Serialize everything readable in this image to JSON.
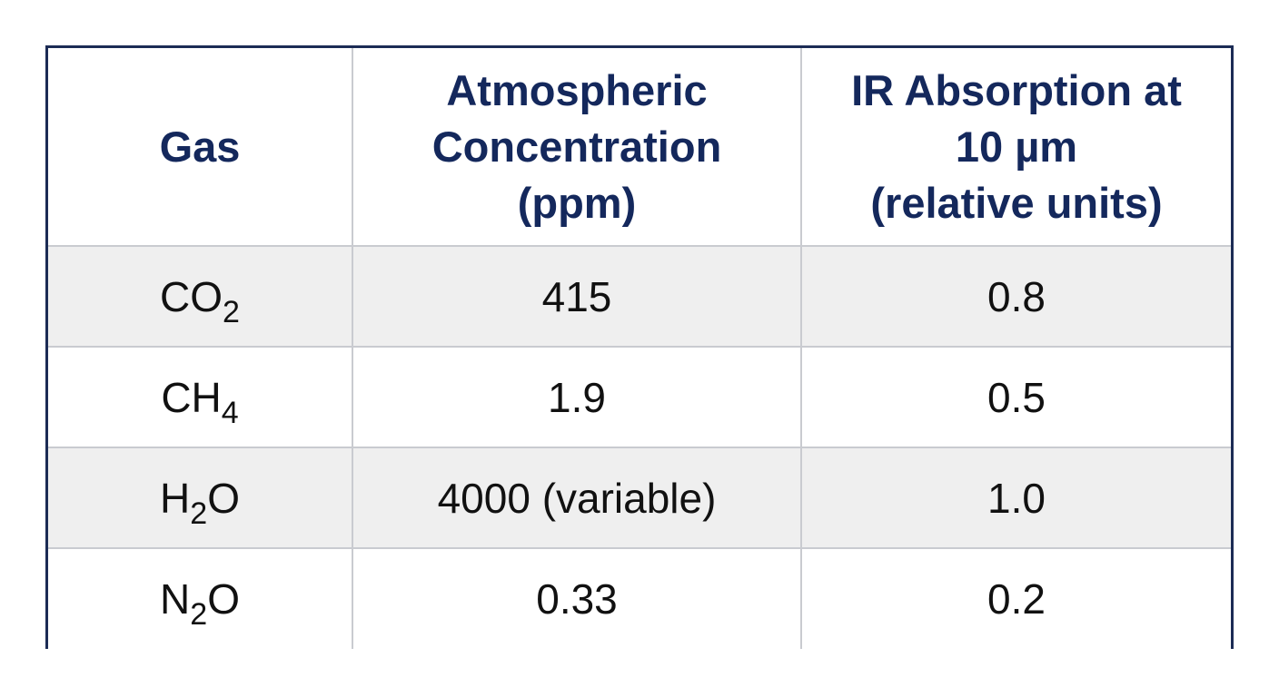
{
  "table": {
    "headers": [
      {
        "lines": [
          "Gas"
        ]
      },
      {
        "lines": [
          "Atmospheric",
          "Concentration",
          "(ppm)"
        ]
      },
      {
        "lines": [
          "IR Absorption at",
          "10 µm",
          "(relative units)"
        ]
      }
    ],
    "rows": [
      {
        "gas": {
          "main": "CO",
          "sub": "2",
          "tail": ""
        },
        "concentration": "415",
        "absorption": "0.8"
      },
      {
        "gas": {
          "main": "CH",
          "sub": "4",
          "tail": ""
        },
        "concentration": "1.9",
        "absorption": "0.5"
      },
      {
        "gas": {
          "main": "H",
          "sub": "2",
          "tail": "O"
        },
        "concentration": "4000 (variable)",
        "absorption": "1.0"
      },
      {
        "gas": {
          "main": "N",
          "sub": "2",
          "tail": "O"
        },
        "concentration": "0.33",
        "absorption": "0.2"
      }
    ]
  },
  "colors": {
    "border": "#1c2c55",
    "header_text": "#14285c",
    "shaded_row": "#efefef",
    "grid": "#c9cbd0"
  }
}
